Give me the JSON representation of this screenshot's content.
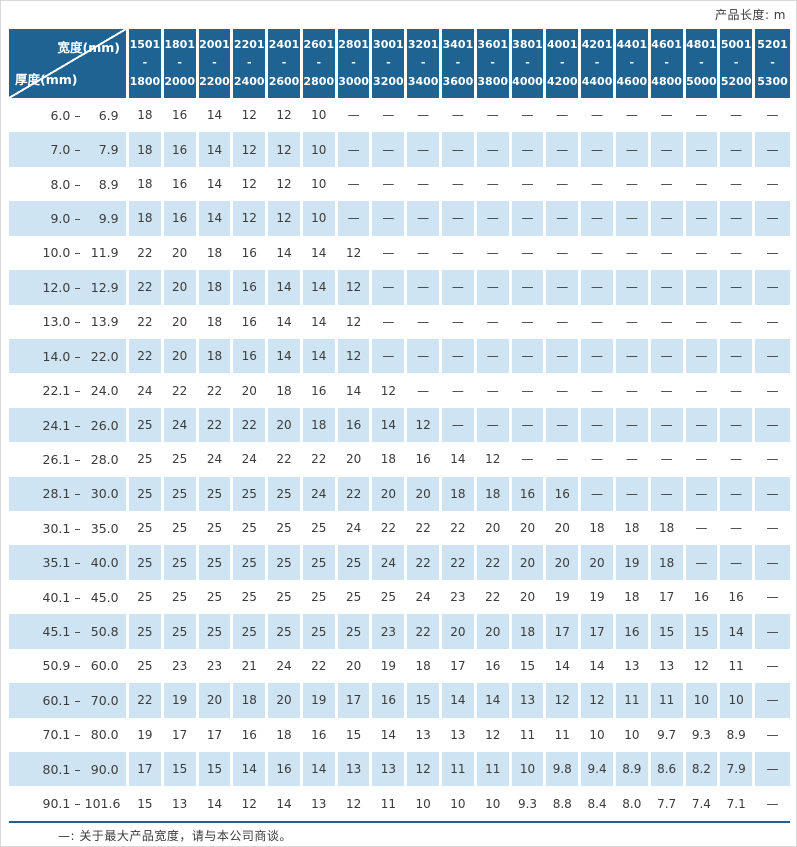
{
  "page": {
    "top_right_label": "产品长度: m",
    "footnote": "—: 关于最大产品宽度，请与本公司商谈。"
  },
  "table": {
    "corner": {
      "width_label": "宽度(mm)",
      "thickness_label": "厚度(mm)"
    },
    "range_separator": "–",
    "width_columns": [
      {
        "line1": "1501",
        "line2": "- 1800"
      },
      {
        "line1": "1801",
        "line2": "- 2000"
      },
      {
        "line1": "2001",
        "line2": "- 2200"
      },
      {
        "line1": "2201",
        "line2": "- 2400"
      },
      {
        "line1": "2401",
        "line2": "- 2600"
      },
      {
        "line1": "2601",
        "line2": "- 2800"
      },
      {
        "line1": "2801",
        "line2": "- 3000"
      },
      {
        "line1": "3001",
        "line2": "- 3200"
      },
      {
        "line1": "3201",
        "line2": "- 3400"
      },
      {
        "line1": "3401",
        "line2": "- 3600"
      },
      {
        "line1": "3601",
        "line2": "- 3800"
      },
      {
        "line1": "3801",
        "line2": "- 4000"
      },
      {
        "line1": "4001",
        "line2": "- 4200"
      },
      {
        "line1": "4201",
        "line2": "- 4400"
      },
      {
        "line1": "4401",
        "line2": "- 4600"
      },
      {
        "line1": "4601",
        "line2": "- 4800"
      },
      {
        "line1": "4801",
        "line2": "- 5000"
      },
      {
        "line1": "5001",
        "line2": "- 5200"
      },
      {
        "line1": "5201",
        "line2": "- 5300"
      }
    ],
    "rows": [
      {
        "min": "6.0",
        "max": "6.9",
        "values": [
          "18",
          "16",
          "14",
          "12",
          "12",
          "10",
          "—",
          "—",
          "—",
          "—",
          "—",
          "—",
          "—",
          "—",
          "—",
          "—",
          "—",
          "—",
          "—"
        ]
      },
      {
        "min": "7.0",
        "max": "7.9",
        "values": [
          "18",
          "16",
          "14",
          "12",
          "12",
          "10",
          "—",
          "—",
          "—",
          "—",
          "—",
          "—",
          "—",
          "—",
          "—",
          "—",
          "—",
          "—",
          "—"
        ]
      },
      {
        "min": "8.0",
        "max": "8.9",
        "values": [
          "18",
          "16",
          "14",
          "12",
          "12",
          "10",
          "—",
          "—",
          "—",
          "—",
          "—",
          "—",
          "—",
          "—",
          "—",
          "—",
          "—",
          "—",
          "—"
        ]
      },
      {
        "min": "9.0",
        "max": "9.9",
        "values": [
          "18",
          "16",
          "14",
          "12",
          "12",
          "10",
          "—",
          "—",
          "—",
          "—",
          "—",
          "—",
          "—",
          "—",
          "—",
          "—",
          "—",
          "—",
          "—"
        ]
      },
      {
        "min": "10.0",
        "max": "11.9",
        "values": [
          "22",
          "20",
          "18",
          "16",
          "14",
          "14",
          "12",
          "—",
          "—",
          "—",
          "—",
          "—",
          "—",
          "—",
          "—",
          "—",
          "—",
          "—",
          "—"
        ]
      },
      {
        "min": "12.0",
        "max": "12.9",
        "values": [
          "22",
          "20",
          "18",
          "16",
          "14",
          "14",
          "12",
          "—",
          "—",
          "—",
          "—",
          "—",
          "—",
          "—",
          "—",
          "—",
          "—",
          "—",
          "—"
        ]
      },
      {
        "min": "13.0",
        "max": "13.9",
        "values": [
          "22",
          "20",
          "18",
          "16",
          "14",
          "14",
          "12",
          "—",
          "—",
          "—",
          "—",
          "—",
          "—",
          "—",
          "—",
          "—",
          "—",
          "—",
          "—"
        ]
      },
      {
        "min": "14.0",
        "max": "22.0",
        "values": [
          "22",
          "20",
          "18",
          "16",
          "14",
          "14",
          "12",
          "—",
          "—",
          "—",
          "—",
          "—",
          "—",
          "—",
          "—",
          "—",
          "—",
          "—",
          "—"
        ]
      },
      {
        "min": "22.1",
        "max": "24.0",
        "values": [
          "24",
          "22",
          "22",
          "20",
          "18",
          "16",
          "14",
          "12",
          "—",
          "—",
          "—",
          "—",
          "—",
          "—",
          "—",
          "—",
          "—",
          "—",
          "—"
        ]
      },
      {
        "min": "24.1",
        "max": "26.0",
        "values": [
          "25",
          "24",
          "22",
          "22",
          "20",
          "18",
          "16",
          "14",
          "12",
          "—",
          "—",
          "—",
          "—",
          "—",
          "—",
          "—",
          "—",
          "—",
          "—"
        ]
      },
      {
        "min": "26.1",
        "max": "28.0",
        "values": [
          "25",
          "25",
          "24",
          "24",
          "22",
          "22",
          "20",
          "18",
          "16",
          "14",
          "12",
          "—",
          "—",
          "—",
          "—",
          "—",
          "—",
          "—",
          "—"
        ]
      },
      {
        "min": "28.1",
        "max": "30.0",
        "values": [
          "25",
          "25",
          "25",
          "25",
          "25",
          "24",
          "22",
          "20",
          "20",
          "18",
          "18",
          "16",
          "16",
          "—",
          "—",
          "—",
          "—",
          "—",
          "—"
        ]
      },
      {
        "min": "30.1",
        "max": "35.0",
        "values": [
          "25",
          "25",
          "25",
          "25",
          "25",
          "25",
          "24",
          "22",
          "22",
          "22",
          "20",
          "20",
          "20",
          "18",
          "18",
          "18",
          "—",
          "—",
          "—"
        ]
      },
      {
        "min": "35.1",
        "max": "40.0",
        "values": [
          "25",
          "25",
          "25",
          "25",
          "25",
          "25",
          "25",
          "24",
          "22",
          "22",
          "22",
          "20",
          "20",
          "20",
          "19",
          "18",
          "—",
          "—",
          "—"
        ]
      },
      {
        "min": "40.1",
        "max": "45.0",
        "values": [
          "25",
          "25",
          "25",
          "25",
          "25",
          "25",
          "25",
          "25",
          "24",
          "23",
          "22",
          "20",
          "19",
          "19",
          "18",
          "17",
          "16",
          "16",
          "—"
        ]
      },
      {
        "min": "45.1",
        "max": "50.8",
        "values": [
          "25",
          "25",
          "25",
          "25",
          "25",
          "25",
          "25",
          "23",
          "22",
          "20",
          "20",
          "18",
          "17",
          "17",
          "16",
          "15",
          "15",
          "14",
          "—"
        ]
      },
      {
        "min": "50.9",
        "max": "60.0",
        "values": [
          "25",
          "23",
          "23",
          "21",
          "24",
          "22",
          "20",
          "19",
          "18",
          "17",
          "16",
          "15",
          "14",
          "14",
          "13",
          "13",
          "12",
          "11",
          "—"
        ]
      },
      {
        "min": "60.1",
        "max": "70.0",
        "values": [
          "22",
          "19",
          "20",
          "18",
          "20",
          "19",
          "17",
          "16",
          "15",
          "14",
          "14",
          "13",
          "12",
          "12",
          "11",
          "11",
          "10",
          "10",
          "—"
        ]
      },
      {
        "min": "70.1",
        "max": "80.0",
        "values": [
          "19",
          "17",
          "17",
          "16",
          "18",
          "16",
          "15",
          "14",
          "13",
          "13",
          "12",
          "11",
          "11",
          "10",
          "10",
          "9.7",
          "9.3",
          "8.9",
          "—"
        ]
      },
      {
        "min": "80.1",
        "max": "90.0",
        "values": [
          "17",
          "15",
          "15",
          "14",
          "16",
          "14",
          "13",
          "13",
          "12",
          "11",
          "11",
          "10",
          "9.8",
          "9.4",
          "8.9",
          "8.6",
          "8.2",
          "7.9",
          "—"
        ]
      },
      {
        "min": "90.1",
        "max": "101.6",
        "values": [
          "15",
          "13",
          "14",
          "12",
          "14",
          "13",
          "12",
          "11",
          "10",
          "10",
          "10",
          "9.3",
          "8.8",
          "8.4",
          "8.0",
          "7.7",
          "7.4",
          "7.1",
          "—"
        ]
      }
    ]
  },
  "colors": {
    "header_bg": "#1e6392",
    "row_alt_bg": "#cfe4f2",
    "text_color": "#3b3b3b",
    "rule_color": "#24618f",
    "page_border": "#d9d9d9"
  }
}
